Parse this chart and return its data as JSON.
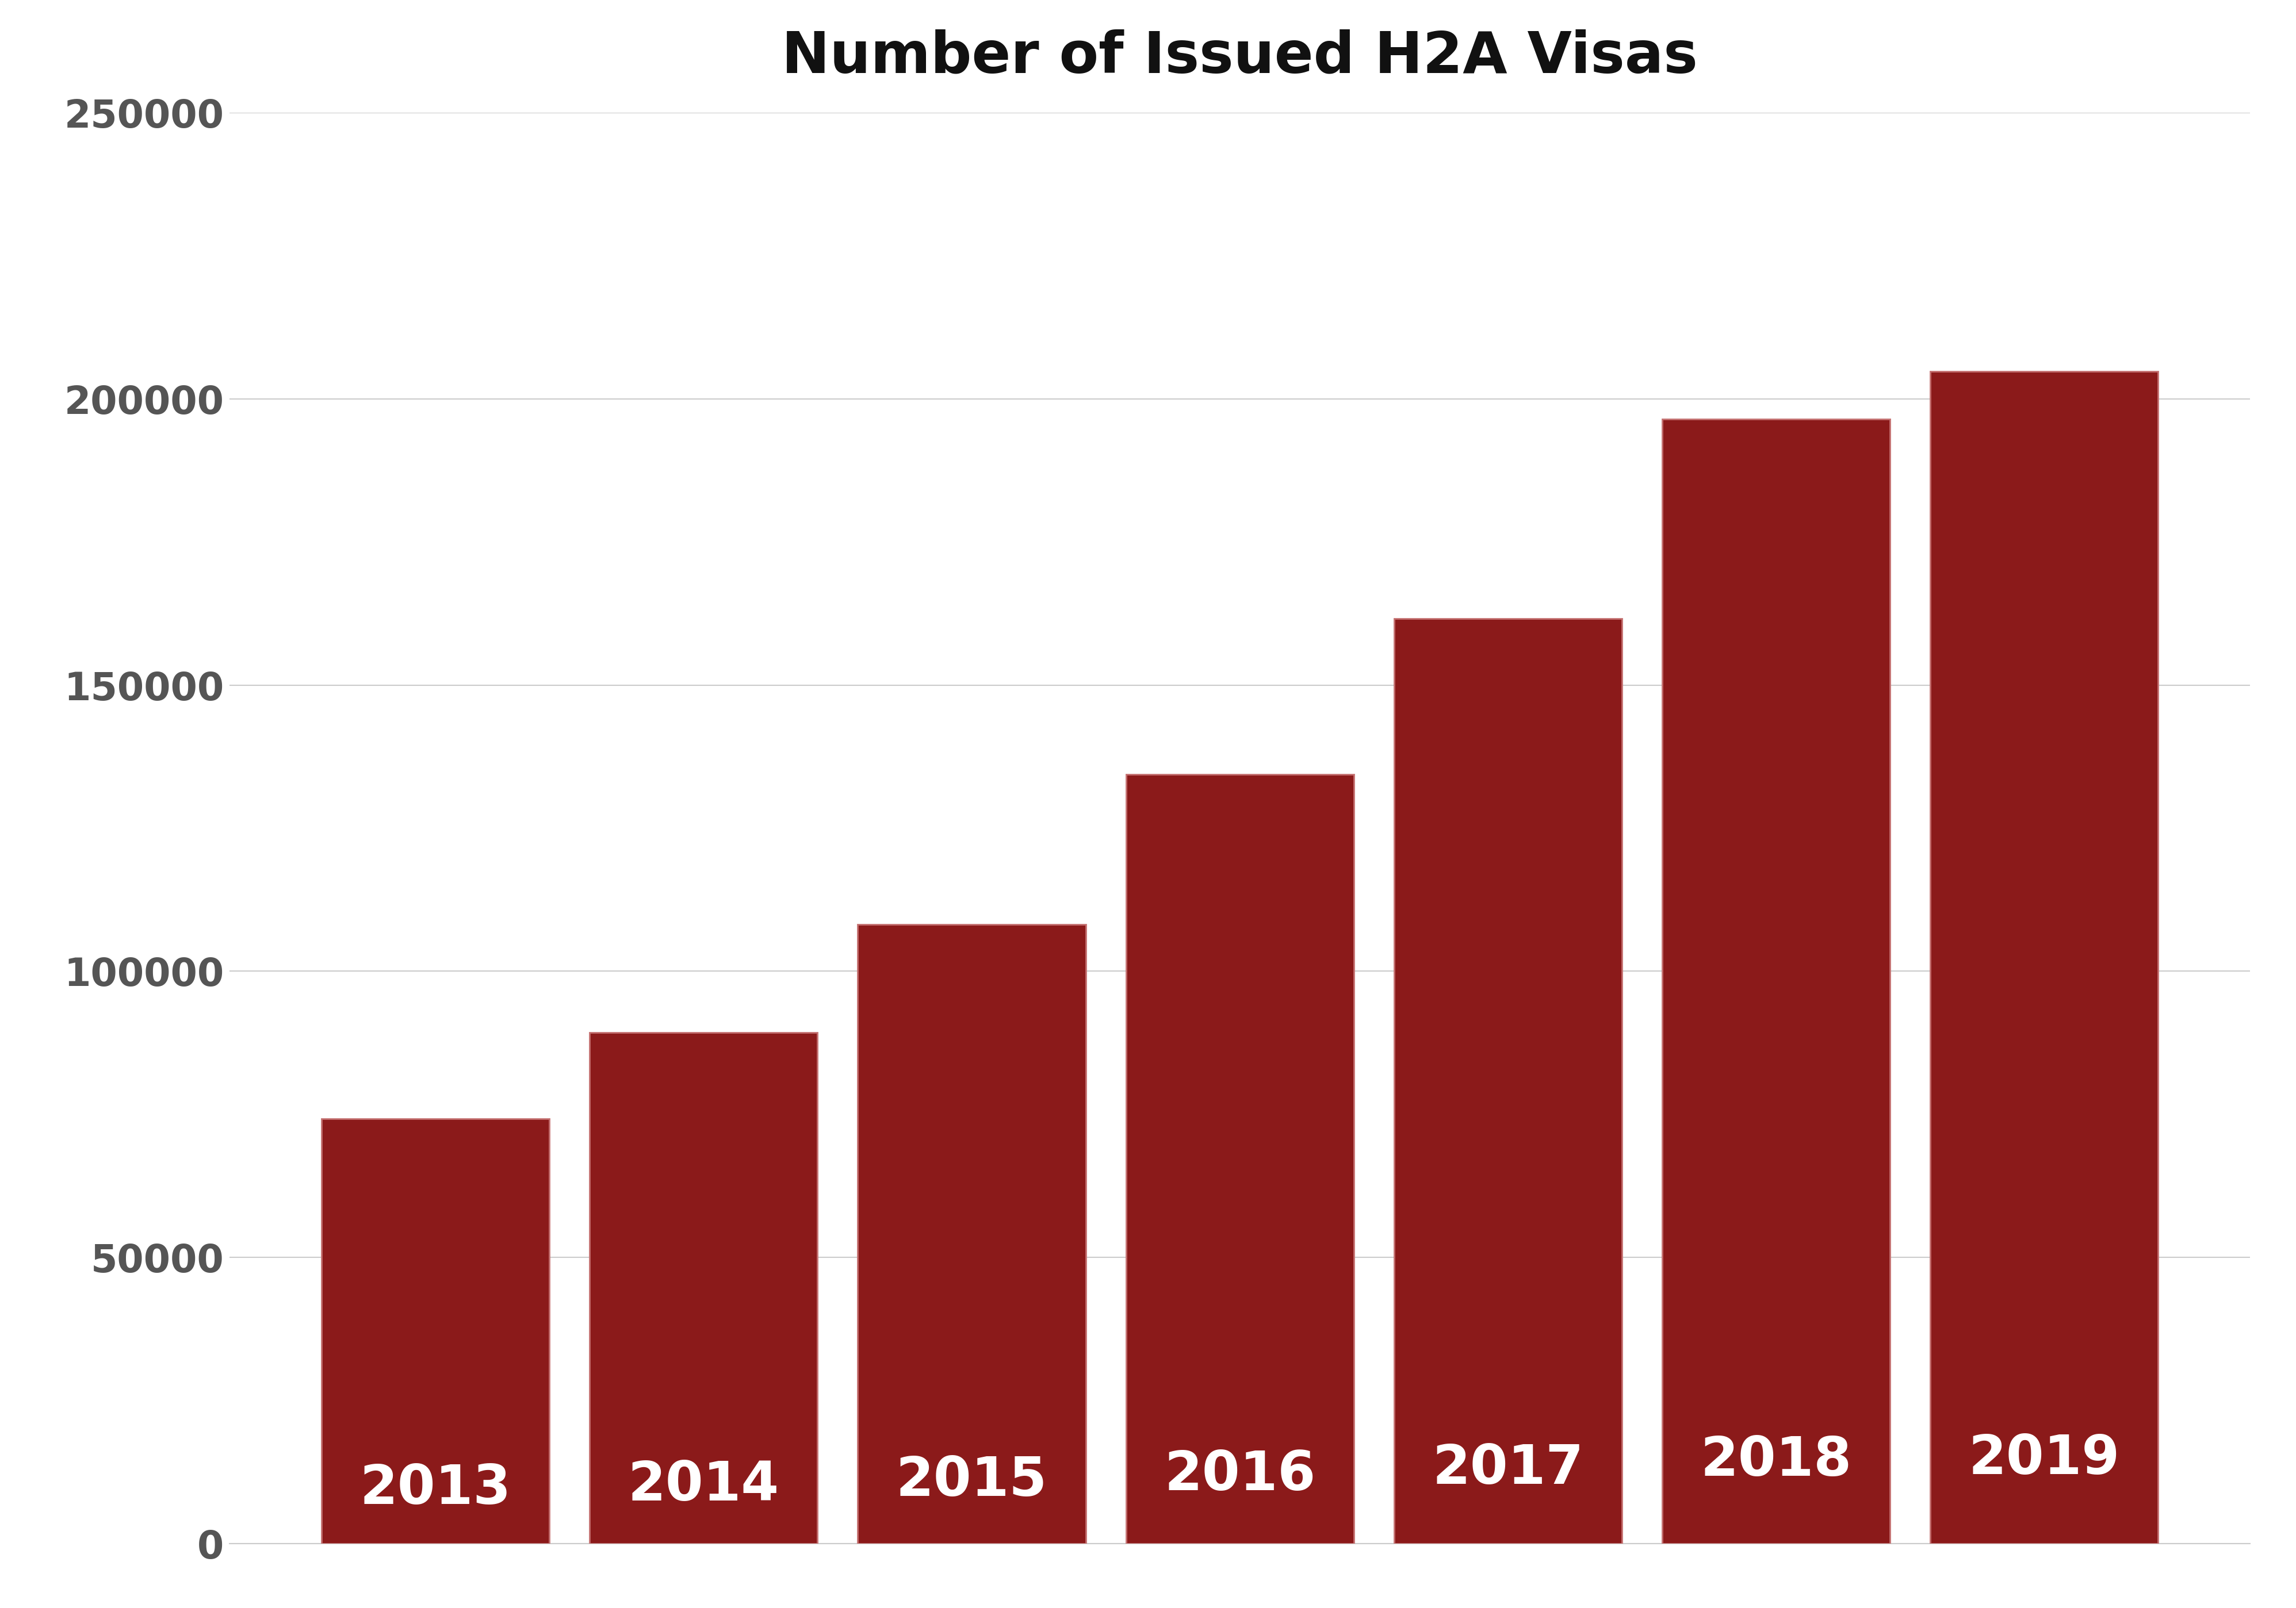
{
  "title": "Number of Issued H2A Visas",
  "categories": [
    "2013",
    "2014",
    "2015",
    "2016",
    "2017",
    "2018",
    "2019"
  ],
  "values": [
    74192,
    89274,
    108144,
    134368,
    161583,
    196409,
    204801
  ],
  "bar_color": "#8B1A1A",
  "bar_edge_color": "#C47070",
  "label_color": "#FFFFFF",
  "ytick_color": "#555555",
  "title_color": "#111111",
  "background_color": "#FFFFFF",
  "grid_color": "#CCCCCC",
  "ylim": [
    0,
    250000
  ],
  "yticks": [
    0,
    50000,
    100000,
    150000,
    200000,
    250000
  ],
  "title_fontsize": 72,
  "label_fontsize": 68,
  "ytick_fontsize": 48,
  "bar_width": 0.85
}
